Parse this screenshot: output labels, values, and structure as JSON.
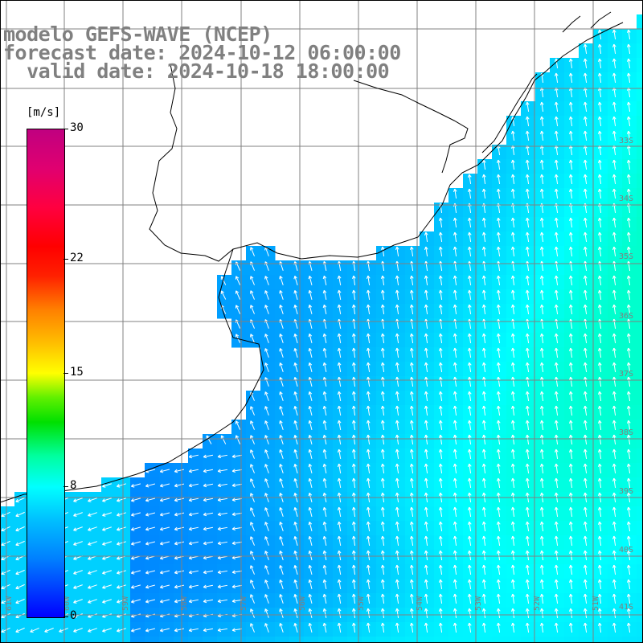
{
  "title": {
    "line1": "modelo GEFS-WAVE (NCEP)",
    "line2": "forecast date: 2024-10-12 06:00:00",
    "line3": "  valid date: 2024-10-18 18:00:00"
  },
  "legend": {
    "unit": "[m/s]",
    "ticks": [
      {
        "label": "30",
        "value": 30
      },
      {
        "label": "22",
        "value": 22
      },
      {
        "label": "15",
        "value": 15
      },
      {
        "label": "8",
        "value": 8
      },
      {
        "label": "0",
        "value": 0
      }
    ],
    "min": 0,
    "max": 30
  },
  "grid": {
    "lat_labels": [
      "33S",
      "34S",
      "35S",
      "36S",
      "37S",
      "38S",
      "39S",
      "40S",
      "41S"
    ],
    "lon_labels": [
      "61W",
      "60W",
      "59W",
      "58W",
      "57W",
      "56W",
      "55W",
      "54W",
      "53W",
      "52W",
      "51W"
    ]
  },
  "colors": {
    "ocean_deep": "#0a7cf0",
    "ocean_mid": "#0aa8f4",
    "ocean_light": "#14d2f6",
    "land": "#ffffff",
    "coast": "#000000",
    "grid": "#808080",
    "arrow": "#ffffff",
    "title_text": "#808080"
  }
}
